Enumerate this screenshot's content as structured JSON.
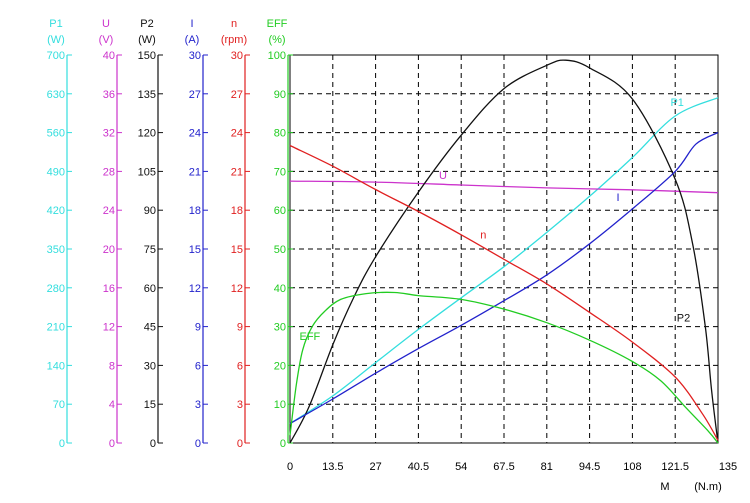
{
  "chart_data": {
    "type": "line",
    "xlabel": "M",
    "xunit": "(N.m)",
    "x_ticks": [
      "0",
      "13.5",
      "27",
      "40.5",
      "54",
      "67.5",
      "81",
      "94.5",
      "108",
      "121.5",
      "135"
    ],
    "xlim": [
      0,
      135
    ],
    "grid": true,
    "axes": [
      {
        "key": "P1",
        "label": "P1",
        "unit": "(W)",
        "color": "#33dede",
        "max": 700,
        "ticks": [
          "0",
          "70",
          "140",
          "210",
          "280",
          "350",
          "420",
          "490",
          "560",
          "630",
          "700"
        ]
      },
      {
        "key": "U",
        "label": "U",
        "unit": "(V)",
        "color": "#cc33cc",
        "max": 40,
        "ticks": [
          "0",
          "4",
          "8",
          "12",
          "16",
          "20",
          "24",
          "28",
          "32",
          "36",
          "40"
        ]
      },
      {
        "key": "P2",
        "label": "P2",
        "unit": "(W)",
        "color": "#111111",
        "max": 150,
        "ticks": [
          "0",
          "15",
          "30",
          "45",
          "60",
          "75",
          "90",
          "105",
          "120",
          "135",
          "150"
        ]
      },
      {
        "key": "I",
        "label": "I",
        "unit": "(A)",
        "color": "#2222cc",
        "max": 30,
        "ticks": [
          "0",
          "3",
          "6",
          "9",
          "12",
          "15",
          "18",
          "21",
          "24",
          "27",
          "30"
        ]
      },
      {
        "key": "n",
        "label": "n",
        "unit": "(rpm)",
        "color": "#e02020",
        "max": 30,
        "ticks": [
          "0",
          "3",
          "6",
          "9",
          "12",
          "15",
          "18",
          "21",
          "24",
          "27",
          "30"
        ]
      },
      {
        "key": "EFF",
        "label": "EFF",
        "unit": "(%)",
        "color": "#22cc22",
        "max": 100,
        "ticks": [
          "0",
          "10",
          "20",
          "30",
          "40",
          "50",
          "60",
          "70",
          "80",
          "90",
          "100"
        ]
      }
    ],
    "series": [
      {
        "name": "P1",
        "axis": "P1",
        "color": "#33dede",
        "label_at": [
          120,
          608
        ],
        "points": [
          [
            0,
            35
          ],
          [
            13.5,
            85
          ],
          [
            27,
            145
          ],
          [
            40.5,
            205
          ],
          [
            54,
            262
          ],
          [
            67.5,
            318
          ],
          [
            81,
            380
          ],
          [
            94.5,
            445
          ],
          [
            108,
            515
          ],
          [
            121.5,
            590
          ],
          [
            135,
            623
          ]
        ]
      },
      {
        "name": "U",
        "axis": "U",
        "color": "#cc33cc",
        "label_at": [
          47,
          27.2
        ],
        "points": [
          [
            0,
            27.0
          ],
          [
            27,
            26.9
          ],
          [
            54,
            26.6
          ],
          [
            81,
            26.3
          ],
          [
            108,
            26.1
          ],
          [
            135,
            25.8
          ]
        ]
      },
      {
        "name": "P2",
        "axis": "P2",
        "color": "#111111",
        "label_at": [
          122,
          47
        ],
        "points": [
          [
            0,
            0
          ],
          [
            6,
            14
          ],
          [
            13.5,
            38
          ],
          [
            20,
            56
          ],
          [
            27,
            72
          ],
          [
            40.5,
            97
          ],
          [
            54,
            119
          ],
          [
            67.5,
            137
          ],
          [
            81,
            146
          ],
          [
            87,
            148
          ],
          [
            94.5,
            145
          ],
          [
            108,
            133
          ],
          [
            121.5,
            102
          ],
          [
            127,
            77
          ],
          [
            131,
            45
          ],
          [
            133,
            20
          ],
          [
            135,
            0
          ]
        ]
      },
      {
        "name": "I",
        "axis": "I",
        "color": "#2222cc",
        "label_at": [
          103,
          18.7
        ],
        "points": [
          [
            0,
            1.5
          ],
          [
            13.5,
            3.4
          ],
          [
            27,
            5.4
          ],
          [
            40.5,
            7.3
          ],
          [
            54,
            9.1
          ],
          [
            67.5,
            11.0
          ],
          [
            81,
            13.0
          ],
          [
            94.5,
            15.4
          ],
          [
            108,
            18.1
          ],
          [
            121.5,
            21.0
          ],
          [
            128,
            23.1
          ],
          [
            135,
            24.0
          ]
        ]
      },
      {
        "name": "n",
        "axis": "n",
        "color": "#e02020",
        "label_at": [
          60,
          15.8
        ],
        "points": [
          [
            0,
            23.0
          ],
          [
            13.5,
            21.4
          ],
          [
            27,
            19.6
          ],
          [
            40.5,
            17.9
          ],
          [
            54,
            16.1
          ],
          [
            67.5,
            14.2
          ],
          [
            81,
            12.3
          ],
          [
            94.5,
            10.1
          ],
          [
            108,
            7.8
          ],
          [
            121.5,
            5.1
          ],
          [
            130,
            2.3
          ],
          [
            135,
            0.2
          ]
        ]
      },
      {
        "name": "EFF",
        "axis": "EFF",
        "color": "#22cc22",
        "label_at": [
          3,
          26.5
        ],
        "points": [
          [
            0,
            2
          ],
          [
            2,
            15
          ],
          [
            4,
            24
          ],
          [
            7,
            30
          ],
          [
            11,
            34
          ],
          [
            16,
            37
          ],
          [
            24,
            38.5
          ],
          [
            33,
            38.8
          ],
          [
            40.5,
            38
          ],
          [
            54,
            37
          ],
          [
            67.5,
            34.5
          ],
          [
            81,
            31
          ],
          [
            94.5,
            26.5
          ],
          [
            108,
            21
          ],
          [
            117,
            16
          ],
          [
            125,
            9
          ],
          [
            132,
            3
          ],
          [
            135,
            0
          ]
        ]
      }
    ]
  }
}
